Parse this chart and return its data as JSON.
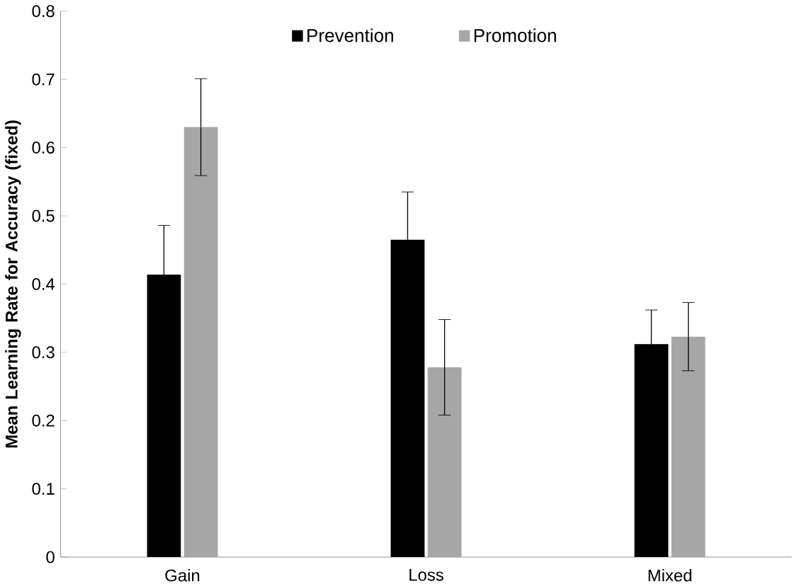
{
  "chart_data": {
    "type": "bar",
    "ylabel": "Mean Learning Rate for Accuracy (fixed)",
    "categories": [
      "Gain",
      "Loss",
      "Mixed"
    ],
    "series": [
      {
        "name": "Prevention",
        "color": "#000000",
        "values": [
          0.414,
          0.465,
          0.312
        ],
        "errors": [
          0.072,
          0.07,
          0.05
        ]
      },
      {
        "name": "Promotion",
        "color": "#a6a6a6",
        "values": [
          0.63,
          0.278,
          0.323
        ],
        "errors": [
          0.071,
          0.07,
          0.05
        ]
      }
    ],
    "ylim": [
      0,
      0.8
    ],
    "yticks": [
      0,
      0.1,
      0.2,
      0.3,
      0.4,
      0.5,
      0.6,
      0.7,
      0.8
    ],
    "legend": "top",
    "grid": false
  }
}
